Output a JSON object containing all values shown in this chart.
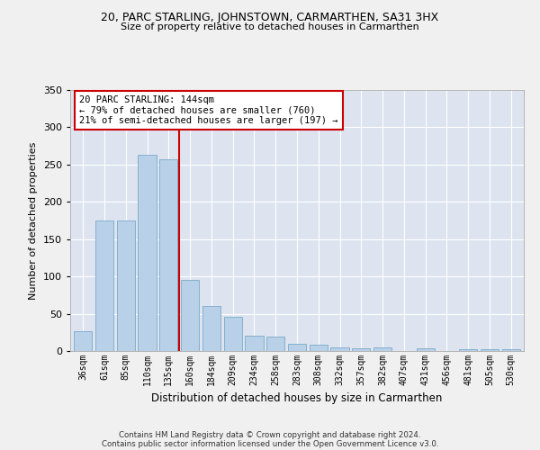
{
  "title": "20, PARC STARLING, JOHNSTOWN, CARMARTHEN, SA31 3HX",
  "subtitle": "Size of property relative to detached houses in Carmarthen",
  "xlabel": "Distribution of detached houses by size in Carmarthen",
  "ylabel": "Number of detached properties",
  "categories": [
    "36sqm",
    "61sqm",
    "85sqm",
    "110sqm",
    "135sqm",
    "160sqm",
    "184sqm",
    "209sqm",
    "234sqm",
    "258sqm",
    "283sqm",
    "308sqm",
    "332sqm",
    "357sqm",
    "382sqm",
    "407sqm",
    "431sqm",
    "456sqm",
    "481sqm",
    "505sqm",
    "530sqm"
  ],
  "values": [
    27,
    175,
    175,
    263,
    257,
    95,
    60,
    46,
    20,
    19,
    10,
    8,
    5,
    4,
    5,
    0,
    4,
    0,
    2,
    2,
    2
  ],
  "bar_color": "#b8d0e8",
  "bar_edge_color": "#7aaac8",
  "ref_line_x": 4.5,
  "ref_line_color": "#cc0000",
  "annotation_line1": "20 PARC STARLING: 144sqm",
  "annotation_line2": "← 79% of detached houses are smaller (760)",
  "annotation_line3": "21% of semi-detached houses are larger (197) →",
  "annotation_box_color": "#ffffff",
  "annotation_box_edge": "#cc0000",
  "ylim": [
    0,
    350
  ],
  "yticks": [
    0,
    50,
    100,
    150,
    200,
    250,
    300,
    350
  ],
  "footer_line1": "Contains HM Land Registry data © Crown copyright and database right 2024.",
  "footer_line2": "Contains public sector information licensed under the Open Government Licence v3.0.",
  "fig_bg_color": "#f0f0f0",
  "plot_bg_color": "#dde4f0"
}
